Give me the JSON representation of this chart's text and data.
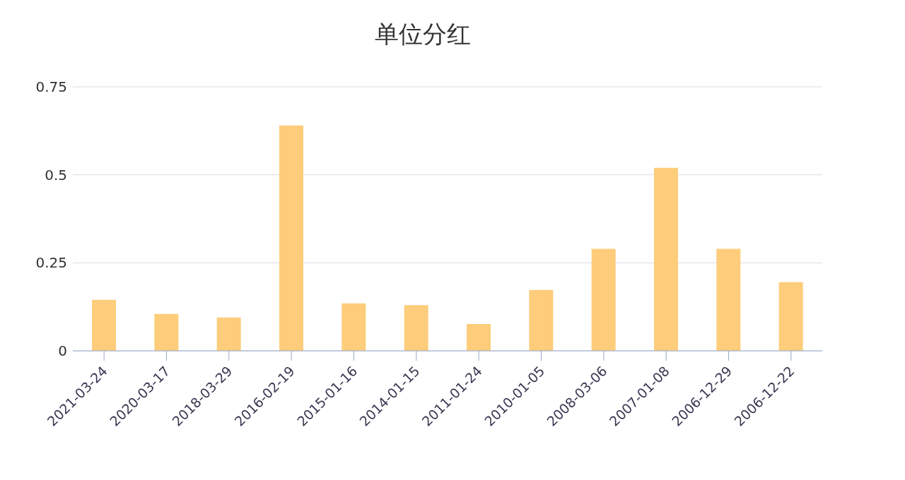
{
  "chart_data": {
    "type": "bar",
    "title": "单位分红",
    "categories": [
      "2021-03-24",
      "2020-03-17",
      "2018-03-29",
      "2016-02-19",
      "2015-01-16",
      "2014-01-15",
      "2011-01-24",
      "2010-01-05",
      "2008-03-06",
      "2007-01-08",
      "2006-12-29",
      "2006-12-22"
    ],
    "values": [
      0.145,
      0.105,
      0.095,
      0.64,
      0.135,
      0.13,
      0.076,
      0.173,
      0.29,
      0.52,
      0.29,
      0.195
    ],
    "color": "#fdcd7b",
    "ylim": [
      0,
      0.75
    ],
    "yticks": [
      0,
      {
        "value": 0.25,
        "label": "0.25"
      },
      {
        "value": 0.5,
        "label": "0.5"
      },
      {
        "value": 0.75,
        "label": "0.75"
      }
    ],
    "grid": "y"
  }
}
